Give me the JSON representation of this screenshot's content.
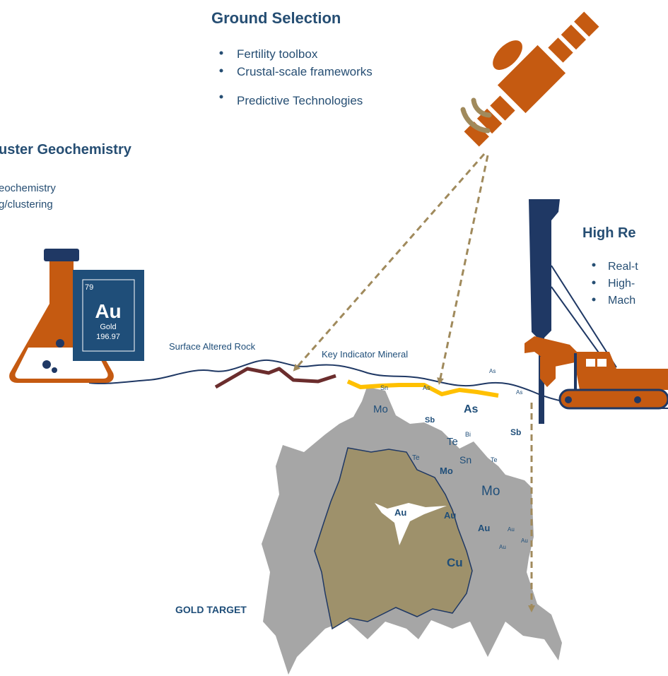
{
  "sections": {
    "ground_selection": {
      "title": "Ground Selection",
      "bullets": [
        "Fertility toolbox",
        "Crustal-scale frameworks",
        "Predictive Technologies"
      ]
    },
    "cluster_geochemistry": {
      "title": "uster Geochemistry",
      "bullets": [
        "eochemistry",
        "g/clustering"
      ]
    },
    "high_resolution": {
      "title": "High Re",
      "bullets": [
        "Real-t",
        "High-",
        "Mach"
      ]
    }
  },
  "element_tile": {
    "number": "79",
    "symbol": "Au",
    "name": "Gold",
    "mass": "196.97"
  },
  "labels": {
    "surface_altered_rock": "Surface Altered Rock",
    "key_indicator_mineral": "Key Indicator Mineral",
    "gold_target": "GOLD TARGET"
  },
  "elements": {
    "as_small_top": "As",
    "as_small_right": "As",
    "sn_on_vein": "Sn",
    "as_on_vein": "As",
    "mo_left": "Mo",
    "as_large": "As",
    "sb_center": "Sb",
    "sb_right": "Sb",
    "bi": "Bi",
    "te_mid": "Te",
    "te_left": "Te",
    "sn_mid": "Sn",
    "te_right": "Te",
    "mo_bold": "Mo",
    "mo_large": "Mo",
    "au_core": "Au",
    "au_edge": "Au",
    "au_right_bold": "Au",
    "au_small_1": "Au",
    "au_small_2": "Au",
    "au_small_3": "Au",
    "cu": "Cu"
  },
  "colors": {
    "heading": "#264e73",
    "orange": "#c55a11",
    "navy": "#1f3864",
    "gray_body": "#a6a6a6",
    "olive_core": "#9e916b",
    "maroon_rock": "#6b2d2d",
    "yellow_vein": "#ffc000",
    "arrow_tan": "#a08a5c",
    "tile_bg": "#1f4e79"
  }
}
